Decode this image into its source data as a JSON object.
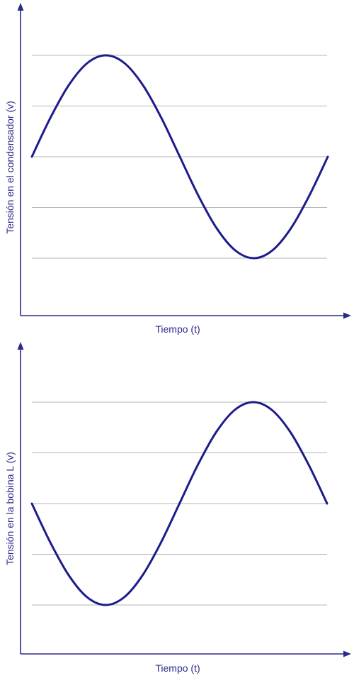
{
  "colors": {
    "axis": "#2a2a8a",
    "curve": "#1c1c8c",
    "grid": "#b4b4b4"
  },
  "chart_data": [
    {
      "type": "line",
      "xlabel": "Tiempo (t)",
      "ylabel": "Tensión en el condensador (v)",
      "xlim": [
        0,
        1
      ],
      "ylim": [
        -1,
        1
      ],
      "grid_values": [
        -1,
        -0.5,
        0,
        0.5,
        1
      ],
      "x": [
        0,
        0.0625,
        0.125,
        0.1875,
        0.25,
        0.3125,
        0.375,
        0.4375,
        0.5,
        0.5625,
        0.625,
        0.6875,
        0.75,
        0.8125,
        0.875,
        0.9375,
        1
      ],
      "series": [
        {
          "values": [
            0,
            0.383,
            0.707,
            0.924,
            1,
            0.924,
            0.707,
            0.383,
            0,
            -0.383,
            -0.707,
            -0.924,
            -1,
            -0.924,
            -0.707,
            -0.383,
            0
          ]
        }
      ]
    },
    {
      "type": "line",
      "xlabel": "Tiempo (t)",
      "ylabel": "Tensión en la bobina L (v)",
      "xlim": [
        0,
        1
      ],
      "ylim": [
        -1,
        1
      ],
      "grid_values": [
        -1,
        -0.5,
        0,
        0.5,
        1
      ],
      "x": [
        0,
        0.0625,
        0.125,
        0.1875,
        0.25,
        0.3125,
        0.375,
        0.4375,
        0.5,
        0.5625,
        0.625,
        0.6875,
        0.75,
        0.8125,
        0.875,
        0.9375,
        1
      ],
      "series": [
        {
          "values": [
            0,
            -0.383,
            -0.707,
            -0.924,
            -1,
            -0.924,
            -0.707,
            -0.383,
            0,
            0.383,
            0.707,
            0.924,
            1,
            0.924,
            0.707,
            0.383,
            0
          ]
        }
      ]
    }
  ]
}
